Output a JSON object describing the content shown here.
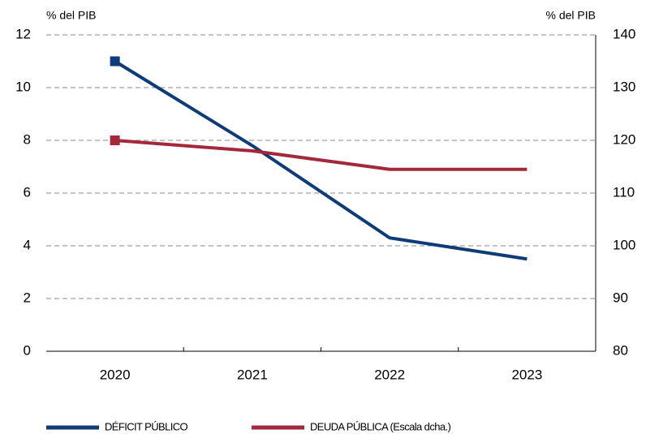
{
  "chart_data": {
    "type": "line",
    "y_label": "% del PIB",
    "y2_label": "% del PIB",
    "categories": [
      "2020",
      "2021",
      "2022",
      "2023"
    ],
    "series": [
      {
        "name": "DÉFICIT PÚBLICO",
        "color": "#0d3c78",
        "values": [
          11,
          7.8,
          4.3,
          3.5
        ]
      },
      {
        "name": "DEUDA PÚBLICA (Escala dcha.)",
        "color": "#a3283a",
        "values": [
          120,
          118,
          114.5,
          114.5
        ],
        "axis": "y2"
      }
    ],
    "ylim": [
      0,
      12
    ],
    "yticks": [
      0,
      2,
      4,
      6,
      8,
      10,
      12
    ],
    "y2lim": [
      80,
      140
    ],
    "y2ticks": [
      80,
      90,
      100,
      110,
      120,
      130,
      140
    ],
    "grid": true,
    "legend": "bottom"
  }
}
